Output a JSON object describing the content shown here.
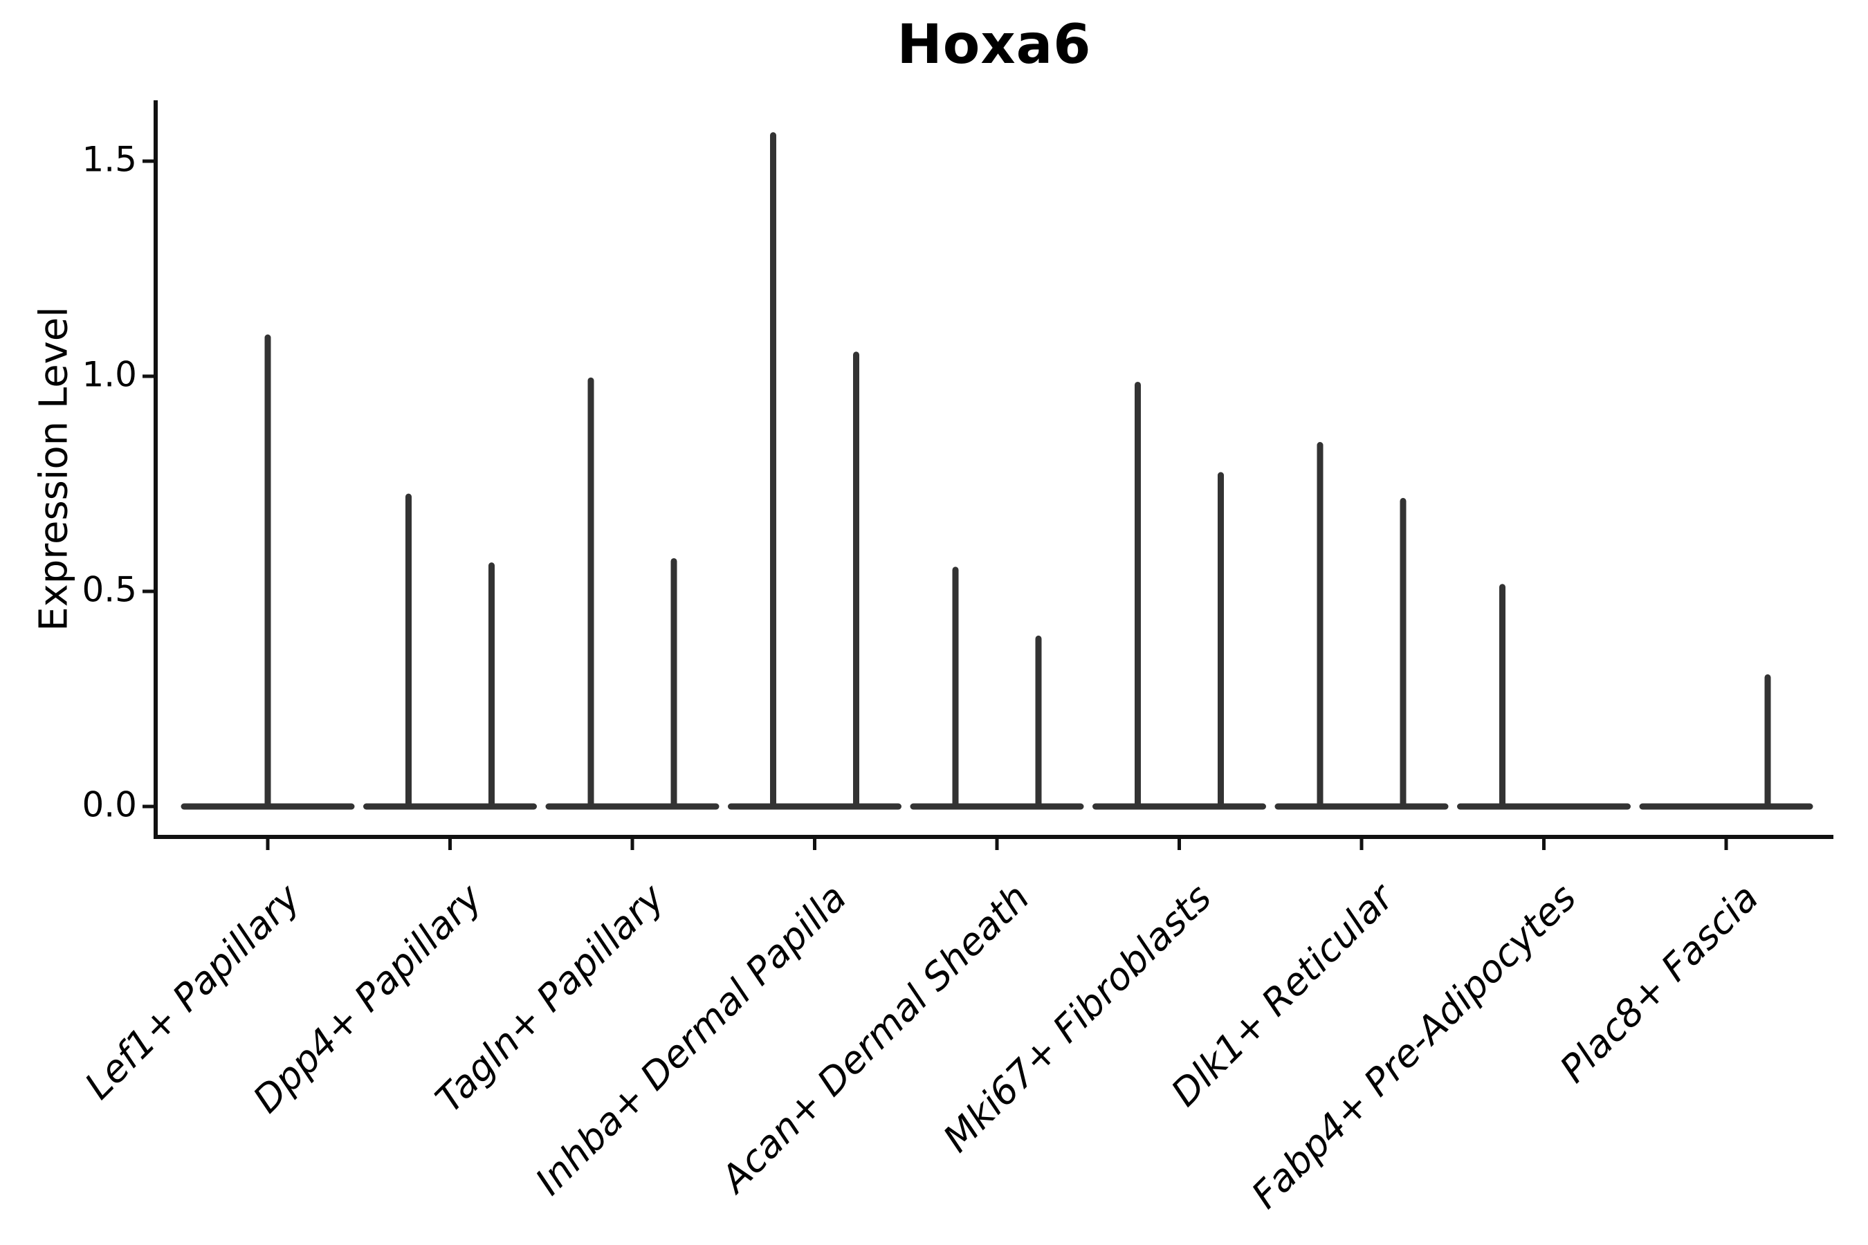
{
  "figure": {
    "title": "Hoxa6",
    "y_axis": {
      "label": "Expression Level",
      "tick_labels": [
        "0.0",
        "0.5",
        "1.0",
        "1.5"
      ]
    }
  },
  "chart_data": {
    "type": "violin",
    "title": "Hoxa6",
    "xlabel": "",
    "ylabel": "Expression Level",
    "ylim": [
      -0.08,
      1.64
    ],
    "y_ticks": [
      0.0,
      0.5,
      1.0,
      1.5
    ],
    "grid": false,
    "legend": "none",
    "categories": [
      "Lef1+ Papillary",
      "Dpp4+ Papillary",
      "Tagln+ Papillary",
      "Inhba+ Dermal Papilla",
      "Acan+ Dermal Sheath",
      "Mki67+ Fibroblasts",
      "Dlk1+ Reticular",
      "Fabp4+ Pre-Adipocytes",
      "Plac8+ Fascia"
    ],
    "violins": [
      {
        "label": "Lef1+ Papillary",
        "baseline_value": 0,
        "spikes": [
          {
            "pos": "center",
            "max": 1.09
          }
        ]
      },
      {
        "label": "Dpp4+ Papillary",
        "baseline_value": 0,
        "spikes": [
          {
            "pos": "left",
            "max": 0.72
          },
          {
            "pos": "right",
            "max": 0.56
          }
        ]
      },
      {
        "label": "Tagln+ Papillary",
        "baseline_value": 0,
        "spikes": [
          {
            "pos": "left",
            "max": 0.99
          },
          {
            "pos": "right",
            "max": 0.57
          }
        ]
      },
      {
        "label": "Inhba+ Dermal Papilla",
        "baseline_value": 0,
        "spikes": [
          {
            "pos": "left",
            "max": 1.56
          },
          {
            "pos": "right",
            "max": 1.05
          }
        ]
      },
      {
        "label": "Acan+ Dermal Sheath",
        "baseline_value": 0,
        "spikes": [
          {
            "pos": "left",
            "max": 0.55
          },
          {
            "pos": "right",
            "max": 0.39
          }
        ]
      },
      {
        "label": "Mki67+ Fibroblasts",
        "baseline_value": 0,
        "spikes": [
          {
            "pos": "left",
            "max": 0.98
          },
          {
            "pos": "right",
            "max": 0.77
          }
        ]
      },
      {
        "label": "Dlk1+ Reticular",
        "baseline_value": 0,
        "spikes": [
          {
            "pos": "left",
            "max": 0.84
          },
          {
            "pos": "right",
            "max": 0.71
          }
        ]
      },
      {
        "label": "Fabp4+ Pre-Adipocytes",
        "baseline_value": 0,
        "spikes": [
          {
            "pos": "left",
            "max": 0.51
          }
        ]
      },
      {
        "label": "Plac8+ Fascia",
        "baseline_value": 0,
        "spikes": [
          {
            "pos": "right",
            "max": 0.3
          }
        ]
      }
    ],
    "colors": {
      "violin": "#333333",
      "axis": "#111111",
      "text": "#000000",
      "background": "#ffffff"
    }
  }
}
